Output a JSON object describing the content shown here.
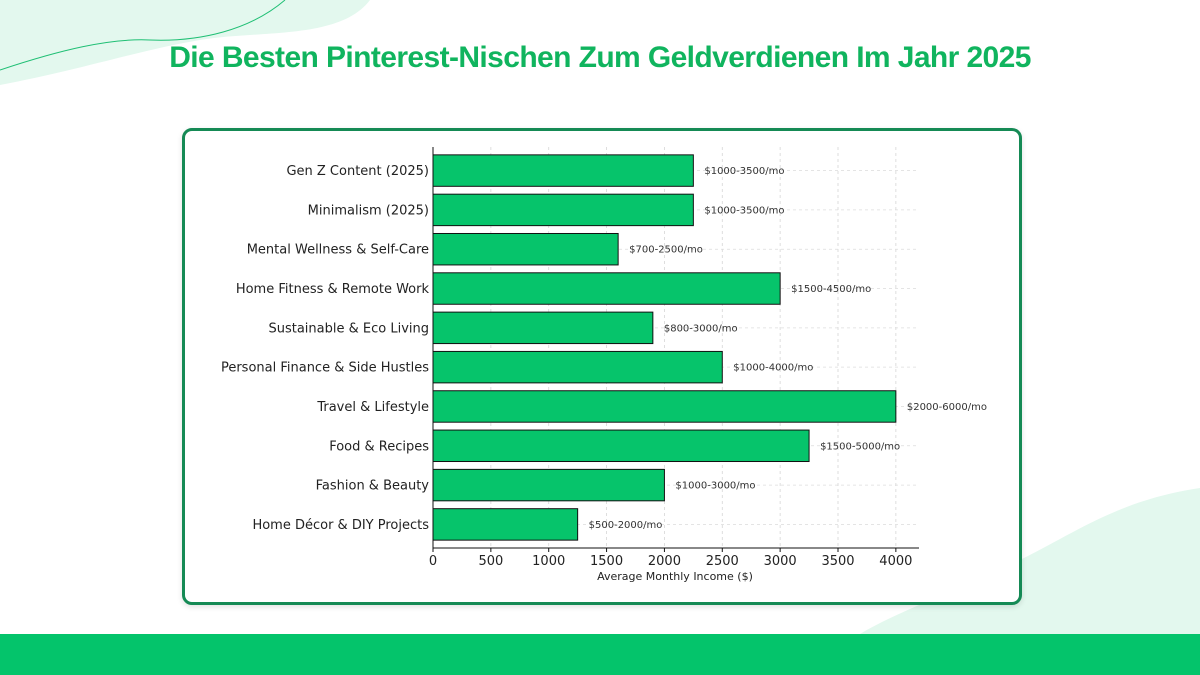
{
  "page": {
    "title": "Die Besten Pinterest-Nischen Zum Geldverdienen Im Jahr 2025"
  },
  "colors": {
    "accent": "#10b45e",
    "bar_fill": "#06c46b",
    "card_border": "#158a55",
    "band": "#04c46b",
    "decor_mint": "#e3f8ee"
  },
  "chart_data": {
    "type": "bar",
    "orientation": "horizontal",
    "title": "",
    "xlabel": "Average Monthly Income ($)",
    "ylabel": "",
    "xlim": [
      0,
      4200
    ],
    "xticks": [
      0,
      500,
      1000,
      1500,
      2000,
      2500,
      3000,
      3500,
      4000
    ],
    "grid": true,
    "categories": [
      "Gen Z Content (2025)",
      "Minimalism (2025)",
      "Mental Wellness & Self-Care",
      "Home Fitness & Remote Work",
      "Sustainable & Eco Living",
      "Personal Finance & Side Hustles",
      "Travel & Lifestyle",
      "Food & Recipes",
      "Fashion & Beauty",
      "Home Décor & DIY Projects"
    ],
    "values": [
      2250,
      2250,
      1600,
      3000,
      1900,
      2500,
      4000,
      3250,
      2000,
      1250
    ],
    "data_labels": [
      "$1000-3500/mo",
      "$1000-3500/mo",
      "$700-2500/mo",
      "$1500-4500/mo",
      "$800-3000/mo",
      "$1000-4000/mo",
      "$2000-6000/mo",
      "$1500-5000/mo",
      "$1000-3000/mo",
      "$500-2000/mo"
    ]
  }
}
